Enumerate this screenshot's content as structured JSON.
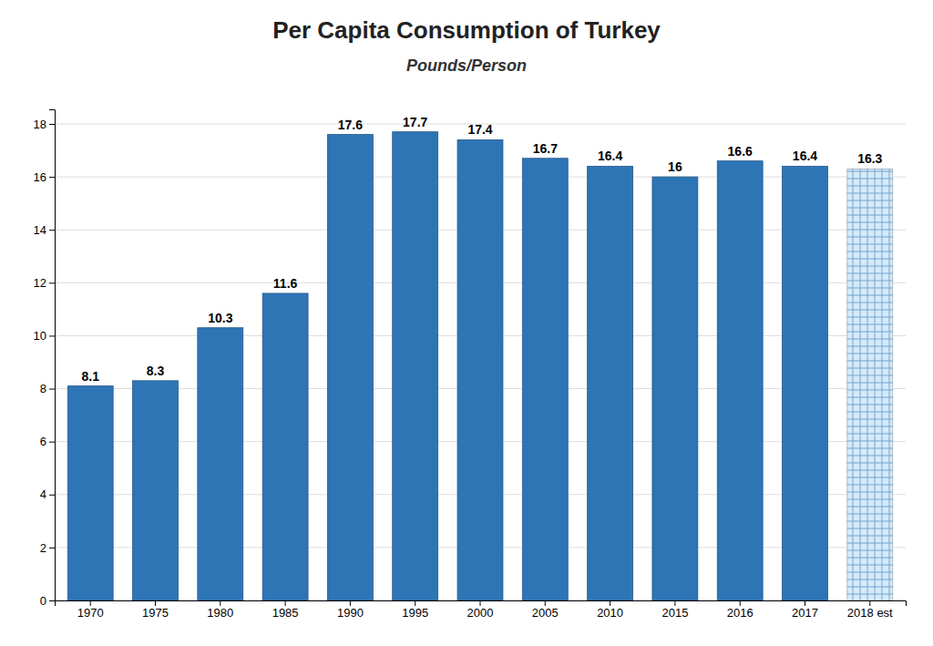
{
  "chart_data": {
    "type": "bar",
    "title": "Per Capita Consumption of Turkey",
    "subtitle": "Pounds/Person",
    "categories": [
      "1970",
      "1975",
      "1980",
      "1985",
      "1990",
      "1995",
      "2000",
      "2005",
      "2010",
      "2015",
      "2016",
      "2017",
      "2018 est"
    ],
    "values": [
      8.1,
      8.3,
      10.3,
      11.6,
      17.6,
      17.7,
      17.4,
      16.7,
      16.4,
      16.0,
      16.6,
      16.4,
      16.3
    ],
    "colors": [
      "#2E75B6",
      "#2E75B6",
      "#2E75B6",
      "#2E75B6",
      "#2E75B6",
      "#2E75B6",
      "#2E75B6",
      "#2E75B6",
      "#2E75B6",
      "#2E75B6",
      "#2E75B6",
      "#2E75B6",
      "#D6EAF8"
    ],
    "ylim": [
      0,
      18.55
    ],
    "yticks": [
      0,
      2,
      4,
      6,
      8,
      10,
      12,
      14,
      16,
      18
    ],
    "grid": true,
    "data_labels": true
  }
}
